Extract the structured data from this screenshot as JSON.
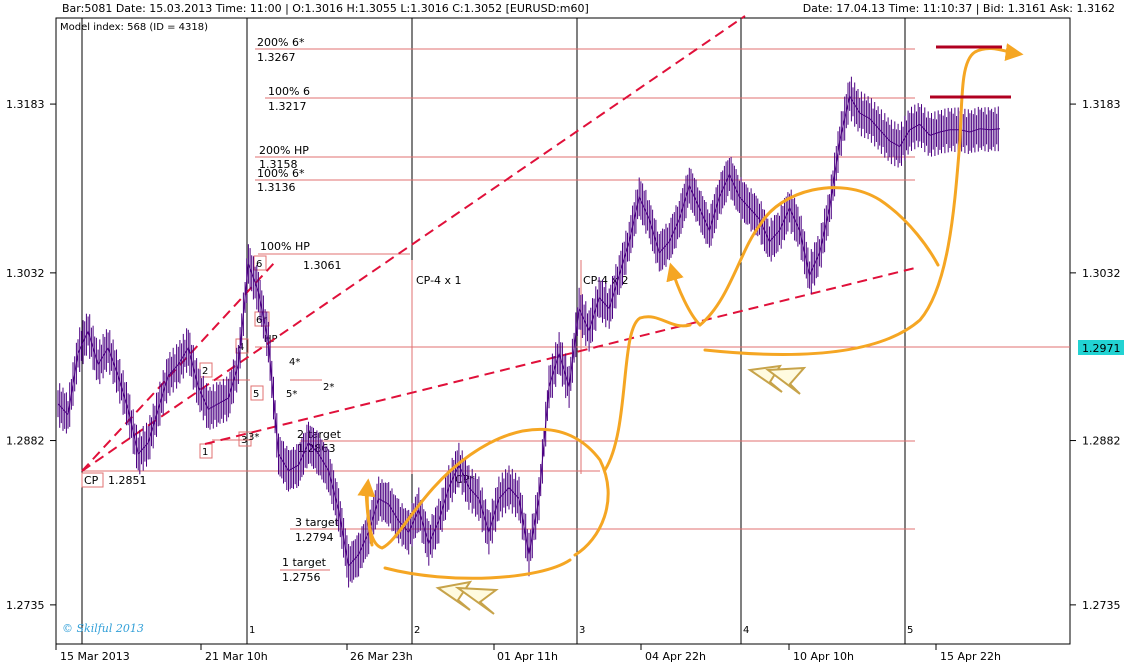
{
  "header": {
    "bar_info": "Bar:5081  Date:  15.03.2013  Time:  11:00  |  O:1.3016  H:1.3055  L:1.3016  C:1.3052   [EURUSD:m60]",
    "quote_info": "Date:  17.04.13  Time:  11:10:37  |  Bid:  1.3161  Ask:  1.3162",
    "model_index": "Model index: 568  (ID = 4318)"
  },
  "watermark": "© Skilful 2013",
  "current_price_label": "1.2971",
  "colors": {
    "price": "#4b0082",
    "level": "#e07070",
    "trend": "#e0103a",
    "curve": "#f5a623",
    "target": "#b00020",
    "highlight": "#22d3d3"
  },
  "chart_data": {
    "type": "line",
    "symbol": "EURUSD",
    "timeframe": "m60",
    "ylim": [
      1.27,
      1.326
    ],
    "yticks": [
      1.2735,
      1.2882,
      1.3032,
      1.3183
    ],
    "ytick_labels": [
      "1.2735",
      "1.2882",
      "1.3032",
      "1.3183"
    ],
    "xtick_labels": [
      "15 Mar 2013",
      "21 Mar 10h",
      "26 Mar 23h",
      "01 Apr 11h",
      "04 Apr 22h",
      "10 Apr 10h",
      "15 Apr 22h"
    ],
    "period_markers": [
      "1",
      "2",
      "3",
      "4",
      "5"
    ],
    "series": [
      {
        "x": [
          0,
          1,
          2,
          3,
          4,
          5,
          6,
          7,
          8,
          9,
          10,
          11,
          12,
          13,
          14,
          15,
          16,
          17,
          18,
          19,
          20,
          21,
          22,
          23,
          24,
          25,
          26,
          27,
          28,
          29,
          30,
          31,
          32,
          33,
          34,
          35,
          36,
          37,
          38,
          39,
          40,
          41,
          42,
          43,
          44,
          45,
          46,
          47,
          48,
          49,
          50,
          51,
          52,
          53,
          54,
          55,
          56,
          57,
          58,
          59,
          60,
          61,
          62,
          63,
          64,
          65,
          66,
          67,
          68,
          69,
          70,
          71,
          72,
          73,
          74,
          75,
          76,
          77,
          78,
          79,
          80,
          81,
          82,
          83,
          84,
          85,
          86,
          87,
          88,
          89,
          90,
          91,
          92,
          93,
          94
        ],
        "y": [
          1.2915,
          1.2905,
          1.296,
          1.298,
          1.295,
          1.2965,
          1.294,
          1.291,
          1.287,
          1.288,
          1.291,
          1.294,
          1.295,
          1.2965,
          1.293,
          1.291,
          1.2915,
          1.292,
          1.295,
          1.304,
          1.3015,
          1.297,
          1.287,
          1.2855,
          1.286,
          1.288,
          1.287,
          1.2855,
          1.282,
          1.277,
          1.278,
          1.28,
          1.283,
          1.2825,
          1.281,
          1.28,
          1.282,
          1.279,
          1.281,
          1.284,
          1.286,
          1.284,
          1.283,
          1.28,
          1.283,
          1.284,
          1.283,
          1.278,
          1.283,
          1.293,
          1.296,
          1.293,
          1.3,
          1.298,
          1.301,
          1.3,
          1.303,
          1.306,
          1.31,
          1.308,
          1.305,
          1.306,
          1.308,
          1.311,
          1.309,
          1.307,
          1.31,
          1.312,
          1.31,
          1.309,
          1.308,
          1.306,
          1.307,
          1.309,
          1.307,
          1.303,
          1.305,
          1.309,
          1.315,
          1.319,
          1.3175,
          1.317,
          1.316,
          1.315,
          1.3145,
          1.316,
          1.3165,
          1.3155,
          1.3158,
          1.316,
          1.316,
          1.3158,
          1.3161,
          1.316,
          1.3161
        ]
      }
    ],
    "levels": [
      {
        "label": "200% 6*",
        "value": "1.3267"
      },
      {
        "label": "100% 6",
        "value": "1.3217"
      },
      {
        "label": "200% HP",
        "value": "1.3158"
      },
      {
        "label": "100% 6*",
        "value": "1.3136"
      },
      {
        "label": "100% HP",
        "value": "1.3061"
      },
      {
        "label": "2 target",
        "value": "1.2863"
      },
      {
        "label": "3 target",
        "value": "1.2794"
      },
      {
        "label": "1 target",
        "value": "1.2756"
      },
      {
        "label": "CP",
        "value": "1.2851"
      }
    ],
    "annotations": [
      "CP-4 x 1",
      "CP-4 x 2",
      "CP*",
      "HP",
      "6",
      "6*",
      "4",
      "4*",
      "3",
      "3*",
      "2",
      "2*",
      "5",
      "5*",
      "1"
    ]
  }
}
